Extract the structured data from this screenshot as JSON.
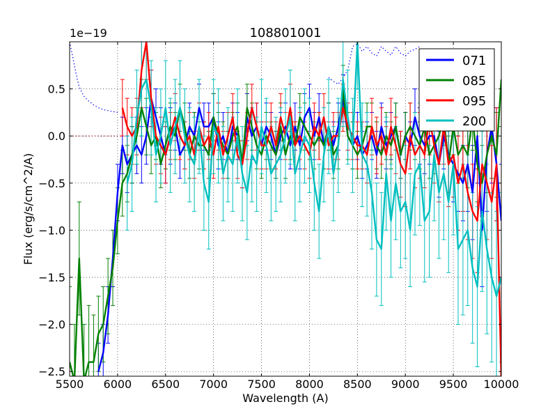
{
  "chart_data": {
    "type": "line",
    "title": "108801001",
    "xlabel": "Wavelength (A)",
    "ylabel": "Flux (erg/s/cm^2/A)",
    "offset_text": "1e−19",
    "xlim": [
      5500,
      10000
    ],
    "ylim": [
      -2.55,
      1.0
    ],
    "xticks": [
      5500,
      6000,
      6500,
      7000,
      7500,
      8000,
      8500,
      9000,
      9500,
      10000
    ],
    "yticks": [
      0.5,
      0.0,
      -0.5,
      -1.0,
      -1.5,
      -2.0,
      -2.5
    ],
    "ytick_labels": [
      "0.5",
      "0.0",
      "−0.5",
      "−1.0",
      "−1.5",
      "−2.0",
      "−2.5"
    ],
    "grid": true,
    "legend_location": "top-right",
    "series": [
      {
        "name": "071",
        "color": "#0000ff",
        "x": [
          5800,
          5850,
          5900,
          5950,
          6000,
          6050,
          6100,
          6150,
          6200,
          6250,
          6300,
          6350,
          6400,
          6450,
          6500,
          6550,
          6600,
          6650,
          6700,
          6750,
          6800,
          6850,
          6900,
          6950,
          7000,
          7050,
          7100,
          7150,
          7200,
          7250,
          7300,
          7350,
          7400,
          7450,
          7500,
          7550,
          7600,
          7650,
          7700,
          7750,
          7800,
          7850,
          7900,
          7950,
          8000,
          8050,
          8100,
          8150,
          8200,
          8250,
          8300,
          8350,
          8400,
          8450,
          8500,
          8550,
          8600,
          8650,
          8700,
          8750,
          8800,
          8850,
          8900,
          8950,
          9000,
          9050,
          9100,
          9150,
          9200,
          9250,
          9300,
          9350,
          9400,
          9450,
          9500,
          9550,
          9600,
          9650,
          9700,
          9750,
          9800,
          9850,
          9900,
          9950,
          10000
        ],
        "y": [
          -2.5,
          -2.3,
          -1.9,
          -1.3,
          -0.6,
          -0.1,
          -0.3,
          -0.2,
          -0.1,
          -0.2,
          0.0,
          0.4,
          0.2,
          0.0,
          -0.2,
          0.0,
          0.1,
          -0.2,
          -0.1,
          0.1,
          0.0,
          0.3,
          0.1,
          0.1,
          0.2,
          -0.1,
          0.0,
          -0.2,
          0.1,
          0.0,
          -0.3,
          0.2,
          0.0,
          0.1,
          -0.1,
          0.1,
          0.0,
          -0.2,
          0.0,
          0.1,
          -0.1,
          0.1,
          -0.1,
          0.2,
          0.3,
          0.0,
          0.2,
          -0.1,
          0.1,
          -0.1,
          0.1,
          0.4,
          0.0,
          -0.1,
          0.0,
          -0.2,
          -0.1,
          0.0,
          -0.2,
          0.1,
          -0.1,
          0.0,
          0.1,
          -0.2,
          0.0,
          -0.1,
          0.2,
          0.0,
          -0.1,
          0.0,
          0.0,
          -0.3,
          0.0,
          -0.2,
          -0.3,
          -0.4,
          -0.5,
          -0.3,
          -0.6,
          0.0,
          -1.0,
          -0.2,
          0.1,
          -0.3,
          -0.9
        ],
        "err": [
          0.3,
          0.3,
          0.3,
          0.3,
          0.3,
          0.3,
          0.3,
          0.3,
          0.3,
          0.3,
          0.3,
          0.3,
          0.3,
          0.3,
          0.3,
          0.3,
          0.25,
          0.25,
          0.25,
          0.25,
          0.25,
          0.25,
          0.25,
          0.25,
          0.25,
          0.25,
          0.25,
          0.25,
          0.25,
          0.25,
          0.25,
          0.25,
          0.25,
          0.25,
          0.25,
          0.25,
          0.25,
          0.25,
          0.25,
          0.25,
          0.25,
          0.25,
          0.25,
          0.25,
          0.25,
          0.25,
          0.25,
          0.25,
          0.25,
          0.25,
          0.25,
          0.25,
          0.25,
          0.25,
          0.25,
          0.25,
          0.25,
          0.25,
          0.25,
          0.25,
          0.25,
          0.25,
          0.25,
          0.25,
          0.25,
          0.25,
          0.3,
          0.3,
          0.3,
          0.3,
          0.3,
          0.35,
          0.35,
          0.4,
          0.4,
          0.4,
          0.4,
          0.5,
          0.5,
          0.5,
          0.6,
          0.6,
          0.6,
          0.6,
          0.6
        ]
      },
      {
        "name": "085",
        "color": "#008000",
        "x": [
          5500,
          5550,
          5600,
          5650,
          5700,
          5750,
          5800,
          5850,
          5900,
          5950,
          6000,
          6050,
          6100,
          6150,
          6200,
          6250,
          6300,
          6350,
          6400,
          6450,
          6500,
          6550,
          6600,
          6650,
          6700,
          6750,
          6800,
          6850,
          6900,
          6950,
          7000,
          7050,
          7100,
          7150,
          7200,
          7250,
          7300,
          7350,
          7400,
          7450,
          7500,
          7550,
          7600,
          7650,
          7700,
          7750,
          7800,
          7850,
          7900,
          7950,
          8000,
          8050,
          8100,
          8150,
          8200,
          8250,
          8300,
          8350,
          8400,
          8450,
          8500,
          8550,
          8600,
          8650,
          8700,
          8750,
          8800,
          8850,
          8900,
          8950,
          9000,
          9050,
          9100,
          9150,
          9200,
          9250,
          9300,
          9350,
          9400,
          9450,
          9500,
          9550,
          9600,
          9650,
          9700,
          9750,
          9800,
          9850,
          9900,
          9950,
          10000
        ],
        "y": [
          -2.4,
          -2.6,
          -1.3,
          -2.6,
          -2.4,
          -2.4,
          -2.1,
          -2.0,
          -1.7,
          -1.4,
          -0.9,
          -0.5,
          -0.4,
          -0.2,
          0.0,
          0.3,
          0.1,
          -0.1,
          0.0,
          -0.3,
          -0.1,
          0.1,
          0.0,
          0.3,
          0.1,
          -0.2,
          0.0,
          -0.1,
          -0.1,
          -0.2,
          0.2,
          0.0,
          -0.1,
          -0.2,
          0.0,
          0.1,
          -0.3,
          0.3,
          0.1,
          -0.1,
          -0.2,
          0.0,
          -0.1,
          -0.2,
          0.1,
          -0.2,
          0.0,
          -0.1,
          0.2,
          0.1,
          0.0,
          -0.1,
          0.0,
          -0.1,
          0.1,
          -0.2,
          -0.1,
          0.5,
          0.0,
          -0.1,
          -0.2,
          -0.1,
          0.1,
          0.1,
          -0.1,
          -0.2,
          0.0,
          -0.1,
          0.1,
          -0.2,
          0.0,
          0.1,
          0.0,
          -0.1,
          0.1,
          -0.2,
          -0.1,
          0.0,
          0.2,
          -0.3,
          0.1,
          -0.2,
          -0.1,
          -0.2,
          0.2,
          -0.3,
          -0.5,
          -0.2,
          0.0,
          -0.2,
          0.6
        ],
        "err": [
          0.8,
          0.6,
          0.6,
          0.6,
          0.6,
          0.5,
          0.4,
          0.4,
          0.4,
          0.4,
          0.35,
          0.35,
          0.3,
          0.3,
          0.3,
          0.3,
          0.3,
          0.3,
          0.25,
          0.25,
          0.25,
          0.25,
          0.25,
          0.25,
          0.25,
          0.25,
          0.25,
          0.25,
          0.25,
          0.25,
          0.25,
          0.25,
          0.25,
          0.25,
          0.25,
          0.25,
          0.25,
          0.25,
          0.25,
          0.25,
          0.25,
          0.25,
          0.25,
          0.25,
          0.25,
          0.25,
          0.25,
          0.25,
          0.25,
          0.25,
          0.25,
          0.25,
          0.25,
          0.25,
          0.25,
          0.25,
          0.25,
          0.25,
          0.25,
          0.25,
          0.25,
          0.25,
          0.25,
          0.25,
          0.25,
          0.25,
          0.25,
          0.25,
          0.25,
          0.25,
          0.25,
          0.25,
          0.25,
          0.25,
          0.25,
          0.25,
          0.3,
          0.3,
          0.3,
          0.3,
          0.3,
          0.3,
          0.35,
          0.35,
          0.35,
          0.4,
          0.4,
          0.4,
          0.45,
          0.45,
          0.5
        ]
      },
      {
        "name": "095",
        "color": "#ff0000",
        "x": [
          6050,
          6100,
          6150,
          6200,
          6250,
          6300,
          6350,
          6400,
          6450,
          6500,
          6550,
          6600,
          6650,
          6700,
          6750,
          6800,
          6850,
          6900,
          6950,
          7000,
          7050,
          7100,
          7150,
          7200,
          7250,
          7300,
          7350,
          7400,
          7450,
          7500,
          7550,
          7600,
          7650,
          7700,
          7750,
          7800,
          7850,
          7900,
          7950,
          8000,
          8050,
          8100,
          8150,
          8200,
          8250,
          8300,
          8350,
          8400,
          8450,
          8500,
          8550,
          8600,
          8650,
          8700,
          8750,
          8800,
          8850,
          8900,
          8950,
          9000,
          9050,
          9100,
          9150,
          9200,
          9250,
          9300,
          9350,
          9400,
          9450,
          9500,
          9550,
          9600,
          9650,
          9700,
          9750,
          9800,
          9850,
          9900,
          9950,
          10000
        ],
        "y": [
          0.3,
          0.1,
          0.0,
          0.1,
          0.7,
          1.0,
          0.4,
          0.0,
          -0.1,
          -0.2,
          0.0,
          0.2,
          0.0,
          -0.1,
          0.0,
          -0.2,
          0.1,
          -0.1,
          0.0,
          -0.2,
          0.1,
          -0.2,
          0.0,
          0.2,
          -0.2,
          -0.3,
          0.0,
          0.3,
          0.1,
          -0.1,
          -0.1,
          0.1,
          -0.1,
          0.2,
          0.0,
          0.3,
          -0.1,
          0.0,
          -0.1,
          -0.2,
          0.1,
          0.0,
          0.2,
          -0.1,
          0.0,
          0.0,
          0.3,
          0.1,
          0.0,
          -0.1,
          -0.1,
          -0.2,
          0.1,
          -0.1,
          0.0,
          -0.2,
          0.1,
          -0.1,
          -0.3,
          -0.4,
          0.0,
          -0.2,
          -0.1,
          -0.2,
          0.2,
          -0.1,
          -0.3,
          0.1,
          -0.3,
          -0.2,
          -0.5,
          -0.3,
          -0.6,
          -0.8,
          -0.9,
          -0.3,
          -0.5,
          -0.7,
          -0.3,
          -2.6
        ],
        "err": [
          0.3,
          0.3,
          0.3,
          0.3,
          0.4,
          0.4,
          0.3,
          0.3,
          0.3,
          0.3,
          0.25,
          0.25,
          0.25,
          0.25,
          0.25,
          0.25,
          0.25,
          0.25,
          0.25,
          0.25,
          0.25,
          0.25,
          0.25,
          0.25,
          0.25,
          0.25,
          0.25,
          0.25,
          0.25,
          0.25,
          0.25,
          0.25,
          0.25,
          0.25,
          0.25,
          0.25,
          0.25,
          0.25,
          0.25,
          0.25,
          0.25,
          0.25,
          0.25,
          0.25,
          0.25,
          0.25,
          0.25,
          0.25,
          0.25,
          0.25,
          0.25,
          0.3,
          0.3,
          0.3,
          0.3,
          0.3,
          0.3,
          0.3,
          0.35,
          0.35,
          0.35,
          0.35,
          0.35,
          0.35,
          0.4,
          0.4,
          0.4,
          0.4,
          0.45,
          0.45,
          0.5,
          0.5,
          0.5,
          0.5,
          0.55,
          0.55,
          0.6,
          0.6,
          0.6,
          0.6
        ]
      },
      {
        "name": "200",
        "color": "#00bfbf",
        "x": [
          6100,
          6150,
          6200,
          6250,
          6300,
          6350,
          6400,
          6450,
          6500,
          6550,
          6600,
          6650,
          6700,
          6750,
          6800,
          6850,
          6900,
          6950,
          7000,
          7050,
          7100,
          7150,
          7200,
          7250,
          7300,
          7350,
          7400,
          7450,
          7500,
          7550,
          7600,
          7650,
          7700,
          7750,
          7800,
          7850,
          7900,
          7950,
          8000,
          8050,
          8100,
          8150,
          8200,
          8250,
          8300,
          8350,
          8400,
          8450,
          8500,
          8550,
          8600,
          8650,
          8700,
          8750,
          8800,
          8850,
          8900,
          8950,
          9000,
          9050,
          9100,
          9150,
          9200,
          9250,
          9300,
          9350,
          9400,
          9450,
          9500,
          9550,
          9600,
          9650,
          9700,
          9750,
          9800,
          9850,
          9900,
          9950,
          10000
        ],
        "y": [
          -0.5,
          -0.3,
          0.2,
          0.5,
          0.6,
          0.3,
          -0.2,
          0.0,
          0.3,
          -0.1,
          0.1,
          0.3,
          0.0,
          -0.2,
          -0.3,
          0.1,
          -0.5,
          -0.7,
          0.1,
          0.0,
          -0.4,
          -0.2,
          -0.3,
          0.0,
          -0.4,
          -0.6,
          -0.2,
          -0.3,
          0.1,
          -0.1,
          -0.4,
          -0.3,
          -0.2,
          0.0,
          0.2,
          -0.4,
          -0.2,
          0.0,
          -0.1,
          -0.5,
          -0.8,
          -0.2,
          0.1,
          -0.4,
          -0.1,
          0.6,
          0.2,
          -0.1,
          1.0,
          -0.2,
          -0.3,
          -0.6,
          -1.1,
          -1.2,
          -0.4,
          -0.9,
          -0.5,
          -0.8,
          -0.7,
          -1.0,
          -0.4,
          -0.3,
          -0.9,
          -0.8,
          -0.2,
          -0.6,
          -0.4,
          -0.7,
          -0.3,
          -1.2,
          -1.1,
          -1.0,
          -1.4,
          -1.6,
          -0.8,
          -1.2,
          -1.5,
          -1.7,
          -1.5
        ],
        "err": [
          0.5,
          0.5,
          0.5,
          0.5,
          0.5,
          0.5,
          0.5,
          0.5,
          0.5,
          0.5,
          0.5,
          0.5,
          0.5,
          0.5,
          0.5,
          0.5,
          0.5,
          0.5,
          0.5,
          0.5,
          0.5,
          0.5,
          0.5,
          0.5,
          0.5,
          0.5,
          0.5,
          0.5,
          0.5,
          0.5,
          0.5,
          0.5,
          0.5,
          0.5,
          0.5,
          0.5,
          0.5,
          0.5,
          0.5,
          0.5,
          0.5,
          0.5,
          0.5,
          0.5,
          0.5,
          0.5,
          0.5,
          0.5,
          0.5,
          0.55,
          0.55,
          0.6,
          0.6,
          0.6,
          0.6,
          0.6,
          0.6,
          0.6,
          0.6,
          0.6,
          0.65,
          0.65,
          0.65,
          0.7,
          0.7,
          0.7,
          0.7,
          0.75,
          0.75,
          0.8,
          0.8,
          0.8,
          0.8,
          0.85,
          0.85,
          0.9,
          0.9,
          0.9,
          0.9
        ]
      }
    ],
    "reference_series": [
      {
        "name": "continuum-dotted",
        "color": "#0000ff",
        "style": "dotted",
        "x": [
          5500,
          5520,
          5540,
          5560,
          5580,
          5600,
          5650,
          5700,
          5750,
          5800,
          5850,
          5900,
          5950,
          6000
        ],
        "y": [
          1.0,
          0.9,
          0.8,
          0.7,
          0.6,
          0.52,
          0.42,
          0.37,
          0.33,
          0.3,
          0.28,
          0.27,
          0.26,
          0.25
        ]
      },
      {
        "name": "continuum-dotted-top",
        "color": "#0000ff",
        "style": "dotted",
        "x": [
          8200,
          8250,
          8300,
          8350,
          8400,
          8450,
          8500,
          8550,
          8600,
          8650,
          8700,
          8750,
          8800,
          8850,
          8900,
          8950,
          9000,
          9050,
          9100,
          9150
        ],
        "y": [
          0.62,
          0.58,
          0.55,
          0.62,
          0.7,
          0.95,
          0.98,
          0.9,
          0.95,
          0.88,
          0.85,
          0.95,
          0.9,
          0.86,
          0.95,
          0.88,
          0.85,
          0.9,
          0.92,
          0.95
        ]
      },
      {
        "name": "zero-line-dotted",
        "color": "#8b1a1a",
        "style": "dotted",
        "x": [
          5500,
          6050
        ],
        "y": [
          0.0,
          0.0
        ]
      }
    ]
  }
}
